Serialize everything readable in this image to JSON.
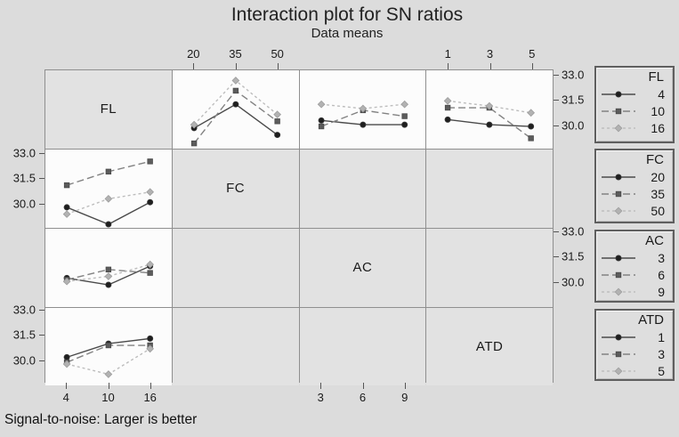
{
  "title": "Interaction plot for SN ratios",
  "subtitle": "Data means",
  "caption": "Signal-to-noise: Larger is better",
  "colors": {
    "figure_bg": "#dcdcdc",
    "diag_cell_bg": "#e2e2e2",
    "panel_bg": "#fcfcfc",
    "grid_border": "#8f8f8f",
    "text": "#1a1a1a",
    "series_line": [
      "#4a4a4a",
      "#828282",
      "#bdbdbd"
    ],
    "series_fill": [
      "#1f1f1f",
      "#5c5c5c",
      "#b2b2b2"
    ]
  },
  "factors": [
    "FL",
    "FC",
    "AC",
    "ATD"
  ],
  "axes": {
    "top": [
      {
        "col": 2,
        "labels": [
          "20",
          "35",
          "50"
        ]
      },
      {
        "col": 4,
        "labels": [
          "1",
          "3",
          "5"
        ]
      }
    ],
    "bottom": [
      {
        "col": 1,
        "labels": [
          "4",
          "10",
          "16"
        ]
      },
      {
        "col": 3,
        "labels": [
          "3",
          "6",
          "9"
        ]
      }
    ],
    "left": [
      {
        "row": 2,
        "labels": [
          "33.0",
          "31.5",
          "30.0"
        ]
      },
      {
        "row": 4,
        "labels": [
          "33.0",
          "31.5",
          "30.0"
        ]
      }
    ],
    "right": [
      {
        "row": 1,
        "labels": [
          "33.0",
          "31.5",
          "30.0"
        ]
      },
      {
        "row": 3,
        "labels": [
          "33.0",
          "31.5",
          "30.0"
        ]
      }
    ]
  },
  "legends": [
    {
      "title": "FL",
      "items": [
        "4",
        "10",
        "16"
      ]
    },
    {
      "title": "FC",
      "items": [
        "20",
        "35",
        "50"
      ]
    },
    {
      "title": "AC",
      "items": [
        "3",
        "6",
        "9"
      ]
    },
    {
      "title": "ATD",
      "items": [
        "1",
        "3",
        "5"
      ]
    }
  ],
  "chart_data": {
    "type": "line",
    "layout": "4x4 interaction-plot matrix; diagonal cells show factor names; off-diagonal shaded cells are empty",
    "ylim": [
      28.7,
      33.3
    ],
    "yticks": [
      33.0,
      31.5,
      30.0
    ],
    "panels": [
      {
        "row": 1,
        "col": 2,
        "trace_factor": "FL",
        "x_factor": "FC",
        "x": [
          20,
          35,
          50
        ],
        "series": [
          {
            "name": "FL 4",
            "values": [
              29.9,
              31.3,
              29.5
            ]
          },
          {
            "name": "FL 10",
            "values": [
              29.0,
              32.1,
              30.3
            ]
          },
          {
            "name": "FL 16",
            "values": [
              30.1,
              32.7,
              30.7
            ]
          }
        ]
      },
      {
        "row": 1,
        "col": 3,
        "trace_factor": "FL",
        "x_factor": "AC",
        "x": [
          3,
          6,
          9
        ],
        "series": [
          {
            "name": "FL 4",
            "values": [
              30.35,
              30.1,
              30.1
            ]
          },
          {
            "name": "FL 10",
            "values": [
              30.0,
              30.95,
              30.6
            ]
          },
          {
            "name": "FL 16",
            "values": [
              31.3,
              31.05,
              31.3
            ]
          }
        ]
      },
      {
        "row": 1,
        "col": 4,
        "trace_factor": "FL",
        "x_factor": "ATD",
        "x": [
          1,
          3,
          5
        ],
        "series": [
          {
            "name": "FL 4",
            "values": [
              30.4,
              30.1,
              30.0
            ]
          },
          {
            "name": "FL 10",
            "values": [
              31.1,
              31.1,
              29.3
            ]
          },
          {
            "name": "FL 16",
            "values": [
              31.5,
              31.2,
              30.8
            ]
          }
        ]
      },
      {
        "row": 2,
        "col": 1,
        "trace_factor": "FC",
        "x_factor": "FL",
        "x": [
          4,
          10,
          16
        ],
        "series": [
          {
            "name": "FC 20",
            "values": [
              29.9,
              28.9,
              30.2
            ]
          },
          {
            "name": "FC 35",
            "values": [
              31.2,
              32.0,
              32.6
            ]
          },
          {
            "name": "FC 50",
            "values": [
              29.5,
              30.4,
              30.8
            ]
          }
        ]
      },
      {
        "row": 3,
        "col": 1,
        "trace_factor": "AC",
        "x_factor": "FL",
        "x": [
          4,
          10,
          16
        ],
        "series": [
          {
            "name": "AC 3",
            "values": [
              30.4,
              30.0,
              31.1
            ]
          },
          {
            "name": "AC 6",
            "values": [
              30.3,
              30.9,
              30.7
            ]
          },
          {
            "name": "AC 9",
            "values": [
              30.2,
              30.5,
              31.2
            ]
          }
        ]
      },
      {
        "row": 4,
        "col": 1,
        "trace_factor": "ATD",
        "x_factor": "FL",
        "x": [
          4,
          10,
          16
        ],
        "series": [
          {
            "name": "ATD 1",
            "values": [
              30.4,
              31.2,
              31.5
            ]
          },
          {
            "name": "ATD 3",
            "values": [
              30.1,
              31.1,
              31.1
            ]
          },
          {
            "name": "ATD 5",
            "values": [
              30.0,
              29.4,
              30.9
            ]
          }
        ]
      }
    ]
  }
}
